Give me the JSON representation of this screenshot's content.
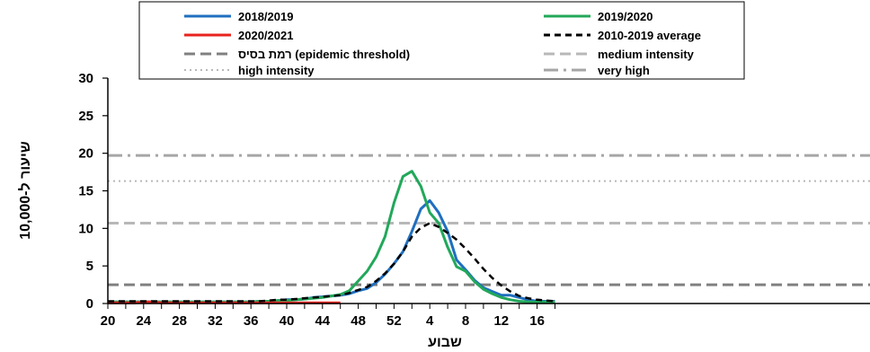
{
  "chart_data": {
    "type": "line",
    "xlabel": "שבוע",
    "ylabel": "שיעור ל-10,000",
    "ylim": [
      0,
      30
    ],
    "yticks": [
      0,
      5,
      10,
      15,
      20,
      25,
      30
    ],
    "x_tick_labels": [
      "20",
      "24",
      "28",
      "32",
      "36",
      "40",
      "44",
      "48",
      "52",
      "4",
      "8",
      "12",
      "16"
    ],
    "grid": false,
    "legend_position": "top",
    "series": [
      {
        "name": "2018/2019",
        "color": "#1f6fbf",
        "style": "solid",
        "x": [
          20,
          21,
          22,
          23,
          24,
          25,
          26,
          27,
          28,
          29,
          30,
          31,
          32,
          33,
          34,
          35,
          36,
          37,
          38,
          39,
          40,
          41,
          42,
          43,
          44,
          45,
          46,
          47,
          48,
          49,
          50,
          51,
          52,
          53,
          54,
          55,
          56,
          57,
          58,
          59,
          60,
          61,
          62,
          63,
          64,
          65,
          66,
          67,
          68,
          69,
          70
        ],
        "values": [
          0.2,
          0.2,
          0.2,
          0.2,
          0.2,
          0.2,
          0.2,
          0.2,
          0.2,
          0.2,
          0.2,
          0.2,
          0.2,
          0.2,
          0.2,
          0.2,
          0.2,
          0.3,
          0.3,
          0.4,
          0.5,
          0.5,
          0.6,
          0.8,
          0.9,
          1.0,
          1.1,
          1.3,
          1.7,
          2.0,
          2.8,
          3.9,
          5.3,
          6.9,
          9.6,
          12.6,
          13.7,
          12.1,
          9.6,
          5.8,
          4.5,
          3.1,
          2.1,
          1.6,
          1.1,
          1.1,
          0.8,
          0.5,
          0.3,
          0.3,
          0.3
        ]
      },
      {
        "name": "2019/2020",
        "color": "#22a85a",
        "style": "solid",
        "x": [
          20,
          21,
          22,
          23,
          24,
          25,
          26,
          27,
          28,
          29,
          30,
          31,
          32,
          33,
          34,
          35,
          36,
          37,
          38,
          39,
          40,
          41,
          42,
          43,
          44,
          45,
          46,
          47,
          48,
          49,
          50,
          51,
          52,
          53,
          54,
          55,
          56,
          57,
          58,
          59,
          60,
          61,
          62,
          63,
          64,
          65,
          66,
          67,
          68,
          69,
          70
        ],
        "values": [
          0.2,
          0.2,
          0.2,
          0.2,
          0.2,
          0.2,
          0.2,
          0.2,
          0.2,
          0.2,
          0.2,
          0.2,
          0.2,
          0.2,
          0.2,
          0.2,
          0.2,
          0.3,
          0.3,
          0.4,
          0.4,
          0.5,
          0.6,
          0.7,
          0.8,
          1.0,
          1.2,
          1.7,
          3.0,
          4.3,
          6.2,
          8.9,
          13.4,
          16.9,
          17.6,
          15.6,
          12.1,
          10.7,
          7.5,
          4.9,
          4.3,
          2.9,
          1.9,
          1.3,
          0.8,
          0.5,
          0.3,
          0.2,
          0.2,
          0.2,
          0.2
        ]
      },
      {
        "name": "2020/2021",
        "color": "#e8231e",
        "style": "solid",
        "x": [
          20,
          21,
          22,
          23,
          24,
          25,
          26,
          27,
          28,
          29,
          30,
          31,
          32,
          33,
          34,
          35,
          36,
          37,
          38,
          39,
          40,
          41,
          42,
          43,
          44,
          45,
          46
        ],
        "values": [
          0.1,
          0.1,
          0.1,
          0.1,
          0.2,
          0.2,
          0.1,
          0.1,
          0.1,
          0.1,
          0.1,
          0.1,
          0.1,
          0.1,
          0.1,
          0.1,
          0.1,
          0.1,
          0.1,
          0.1,
          0.1,
          0.1,
          0.1,
          0.1,
          0.1,
          0.1,
          0.1
        ]
      },
      {
        "name": "2010-2019 average",
        "color": "#000000",
        "style": "dashed",
        "x": [
          20,
          21,
          22,
          23,
          24,
          25,
          26,
          27,
          28,
          29,
          30,
          31,
          32,
          33,
          34,
          35,
          36,
          37,
          38,
          39,
          40,
          41,
          42,
          43,
          44,
          45,
          46,
          47,
          48,
          49,
          50,
          51,
          52,
          53,
          54,
          55,
          56,
          57,
          58,
          59,
          60,
          61,
          62,
          63,
          64,
          65,
          66,
          67,
          68,
          69,
          70
        ],
        "values": [
          0.3,
          0.3,
          0.3,
          0.3,
          0.3,
          0.3,
          0.3,
          0.3,
          0.3,
          0.3,
          0.3,
          0.3,
          0.3,
          0.3,
          0.3,
          0.3,
          0.3,
          0.3,
          0.4,
          0.5,
          0.5,
          0.6,
          0.7,
          0.8,
          0.9,
          1.0,
          1.1,
          1.4,
          1.8,
          2.2,
          3.0,
          4.0,
          5.3,
          6.9,
          8.9,
          10.1,
          10.7,
          10.2,
          9.4,
          8.5,
          7.3,
          6.0,
          4.6,
          3.4,
          2.4,
          1.6,
          1.0,
          0.7,
          0.5,
          0.4,
          0.3
        ]
      }
    ],
    "thresholds": [
      {
        "name": "רמת בסיס (epidemic threshold)",
        "value": 2.5,
        "color": "#808080",
        "style": "dashed"
      },
      {
        "name": "medium intensity",
        "value": 10.7,
        "color": "#b8b8b8",
        "style": "dashed"
      },
      {
        "name": "high intensity",
        "value": 16.3,
        "color": "#b8b8b8",
        "style": "dotted"
      },
      {
        "name": "very high",
        "value": 19.7,
        "color": "#a6a6a6",
        "style": "dashdot"
      }
    ]
  }
}
